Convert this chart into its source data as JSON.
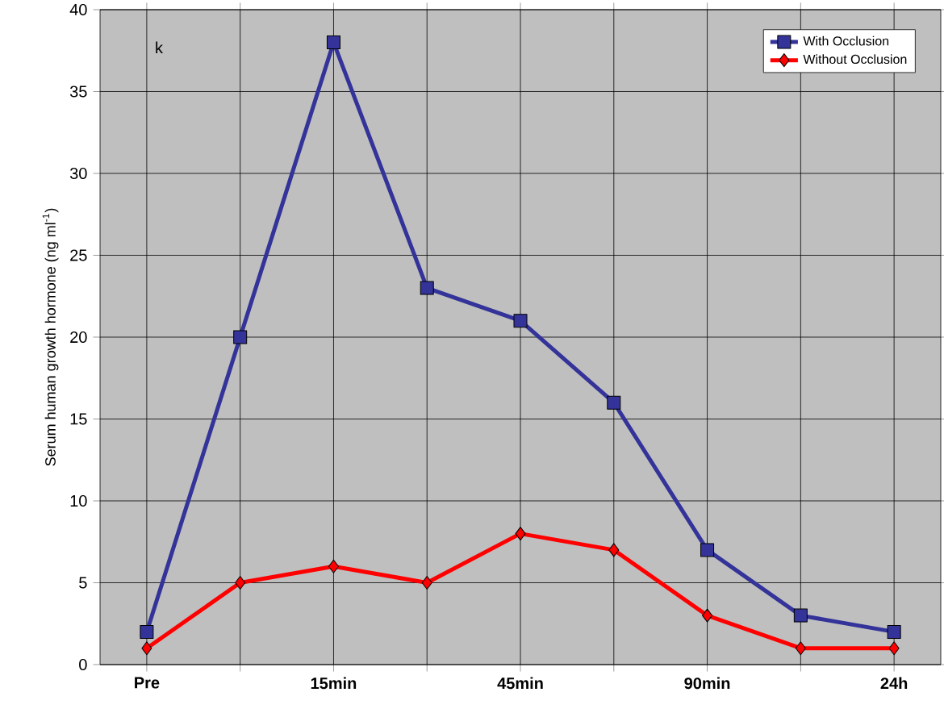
{
  "chart_data": {
    "type": "line",
    "ylabel": "Serum human growth hormone (ng ml$^{-1}$)",
    "categories": [
      "Pre",
      null,
      "15min",
      null,
      "45min",
      null,
      "90min",
      null,
      "24h"
    ],
    "series": [
      {
        "name": "With Occlusion",
        "color": "#333399",
        "marker": "square",
        "values": [
          2,
          20,
          38,
          23,
          21,
          16,
          7,
          3,
          2
        ]
      },
      {
        "name": "Without Occlusion",
        "color": "#ff0000",
        "marker": "diamond",
        "values": [
          1,
          5,
          6,
          5,
          8,
          7,
          3,
          1,
          1
        ]
      }
    ],
    "ylim": [
      0,
      40
    ],
    "yticks": [
      0,
      5,
      10,
      15,
      20,
      25,
      30,
      35,
      40
    ],
    "grid": true,
    "legend": "top right",
    "line_style": "solid",
    "annotations": [
      "k"
    ]
  }
}
